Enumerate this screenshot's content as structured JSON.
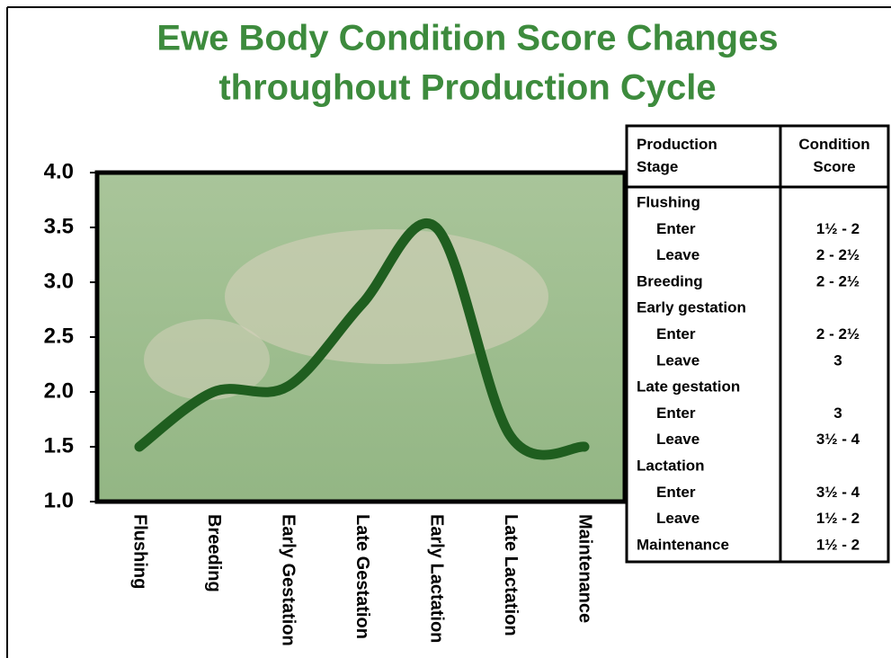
{
  "chart_data": {
    "type": "line",
    "title": "Ewe Body Condition Score Changes",
    "subtitle": "throughout Production Cycle",
    "categories": [
      "Flushing",
      "Breeding",
      "Early Gestation",
      "Late Gestation",
      "Early Lactation",
      "Late Lactation",
      "Maintenance"
    ],
    "values": [
      1.5,
      2.0,
      2.05,
      2.8,
      3.5,
      1.6,
      1.5
    ],
    "color": "#1f5e1f",
    "ylim": [
      1,
      4
    ],
    "yticks": [
      {
        "value": 1,
        "label": "1.0"
      },
      {
        "value": 1.5,
        "label": "1.5"
      },
      {
        "value": 2,
        "label": "2.0"
      },
      {
        "value": 2.5,
        "label": "2.5"
      },
      {
        "value": 3,
        "label": "3.0"
      },
      {
        "value": 3.5,
        "label": "3.5"
      },
      {
        "value": 4,
        "label": "4.0"
      }
    ]
  },
  "table": {
    "headers": [
      "Production Stage",
      "Condition Score"
    ],
    "groups": [
      {
        "name": "Flushing",
        "rows": [
          {
            "stage": "Enter",
            "score": "1½ - 2"
          },
          {
            "stage": "Leave",
            "score": "2 - 2½"
          }
        ]
      },
      {
        "name": "Breeding",
        "score": "2 - 2½"
      },
      {
        "name": "Early gestation",
        "rows": [
          {
            "stage": "Enter",
            "score": "2 - 2½"
          },
          {
            "stage": "Leave",
            "score": "3"
          }
        ]
      },
      {
        "name": "Late gestation",
        "rows": [
          {
            "stage": "Enter",
            "score": "3"
          },
          {
            "stage": "Leave",
            "score": "3½ - 4"
          }
        ]
      },
      {
        "name": "Lactation",
        "rows": [
          {
            "stage": "Enter",
            "score": "3½ - 4"
          },
          {
            "stage": "Leave",
            "score": "1½ - 2"
          }
        ]
      },
      {
        "name": "Maintenance",
        "score": "1½ - 2"
      }
    ]
  }
}
